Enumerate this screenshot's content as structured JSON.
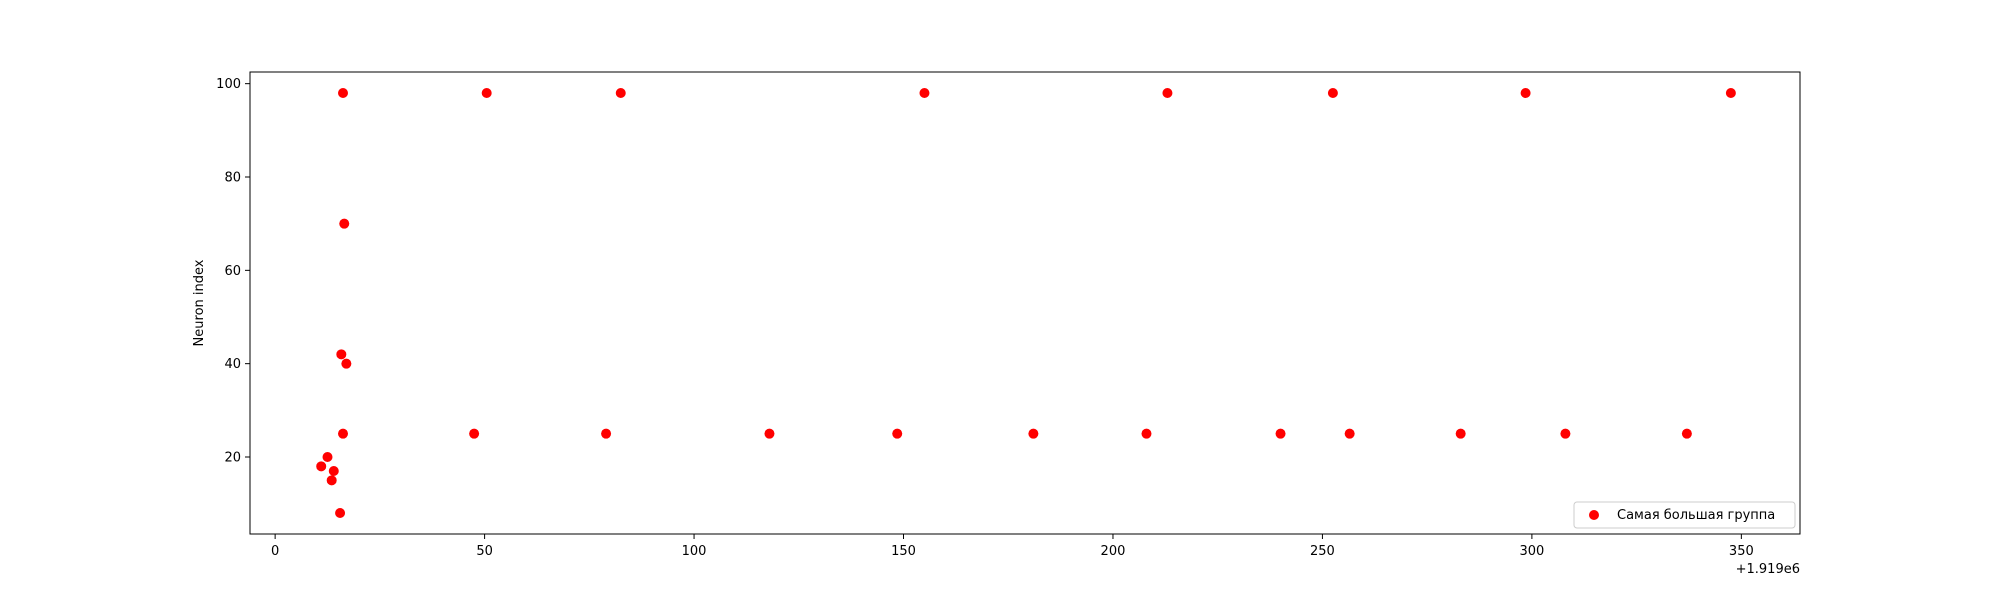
{
  "chart_data": {
    "type": "scatter",
    "title": "",
    "xlabel": "",
    "ylabel": "Neuron index",
    "x_offset_label": "+1.919e6",
    "xlim": [
      -6,
      364
    ],
    "ylim": [
      3.5,
      102.5
    ],
    "xticks": [
      0,
      50,
      100,
      150,
      200,
      250,
      300,
      350
    ],
    "xtick_labels": [
      "0",
      "50",
      "100",
      "150",
      "200",
      "250",
      "300",
      "350"
    ],
    "yticks": [
      20,
      40,
      60,
      80,
      100
    ],
    "ytick_labels": [
      "20",
      "40",
      "60",
      "80",
      "100"
    ],
    "grid": false,
    "legend_position": "lower-right",
    "series": [
      {
        "name": "Самая большая группа",
        "color": "#ff0000",
        "points": [
          {
            "x": 11,
            "y": 18
          },
          {
            "x": 12.5,
            "y": 20
          },
          {
            "x": 13.5,
            "y": 15
          },
          {
            "x": 14,
            "y": 17
          },
          {
            "x": 15.5,
            "y": 8
          },
          {
            "x": 15.8,
            "y": 42
          },
          {
            "x": 16.2,
            "y": 25
          },
          {
            "x": 16.2,
            "y": 98
          },
          {
            "x": 16.5,
            "y": 70
          },
          {
            "x": 17,
            "y": 40
          },
          {
            "x": 47.5,
            "y": 25
          },
          {
            "x": 50.5,
            "y": 98
          },
          {
            "x": 79,
            "y": 25
          },
          {
            "x": 82.5,
            "y": 98
          },
          {
            "x": 118,
            "y": 25
          },
          {
            "x": 148.5,
            "y": 25
          },
          {
            "x": 155,
            "y": 98
          },
          {
            "x": 181,
            "y": 25
          },
          {
            "x": 208,
            "y": 25
          },
          {
            "x": 213,
            "y": 98
          },
          {
            "x": 240,
            "y": 25
          },
          {
            "x": 252.5,
            "y": 98
          },
          {
            "x": 256.5,
            "y": 25
          },
          {
            "x": 283,
            "y": 25
          },
          {
            "x": 298.5,
            "y": 98
          },
          {
            "x": 308,
            "y": 25
          },
          {
            "x": 337,
            "y": 25
          },
          {
            "x": 347.5,
            "y": 98
          }
        ]
      }
    ]
  }
}
